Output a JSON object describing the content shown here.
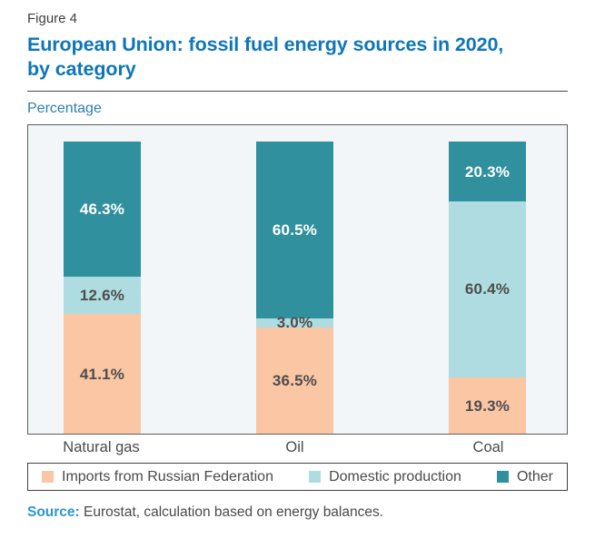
{
  "figure": {
    "label": "Figure 4",
    "title_line1": "European Union: fossil fuel energy sources in 2020,",
    "title_line2": "by category",
    "unit": "Percentage"
  },
  "chart_data": {
    "type": "bar",
    "stacked": true,
    "orientation": "vertical",
    "title": "European Union: fossil fuel energy sources in 2020, by category",
    "ylabel": "Percentage",
    "xlabel": "",
    "categories": [
      "Natural gas",
      "Oil",
      "Coal"
    ],
    "series": [
      {
        "name": "Imports from Russian Federation",
        "color": "#FBC6A4",
        "label_color": "#4D4D4D",
        "values": [
          41.1,
          36.5,
          19.3
        ]
      },
      {
        "name": "Domestic production",
        "color": "#AFDCE0",
        "label_color": "#4D4D4D",
        "values": [
          12.6,
          3.0,
          60.4
        ]
      },
      {
        "name": "Other",
        "color": "#31909D",
        "label_color": "#FFFFFF",
        "values": [
          46.3,
          60.5,
          20.3
        ]
      }
    ],
    "value_suffix": "%",
    "value_decimals": 1,
    "ylim": [
      0,
      106
    ],
    "grid": false,
    "legend_position": "bottom",
    "plot_background": "#F2F6F8"
  },
  "source": {
    "label": "Source:",
    "text": " Eurostat, calculation based on energy balances."
  },
  "colors": {
    "title_blue": "#0E76B8",
    "unit_blue": "#2E7FAD",
    "source_blue": "#2B96D1",
    "plot_bg": "#F2F6F8",
    "plot_border": "#5E5F61",
    "legend_border": "#404040",
    "text_gray": "#4A4A4A",
    "figure_gray": "#3F3F3F"
  }
}
